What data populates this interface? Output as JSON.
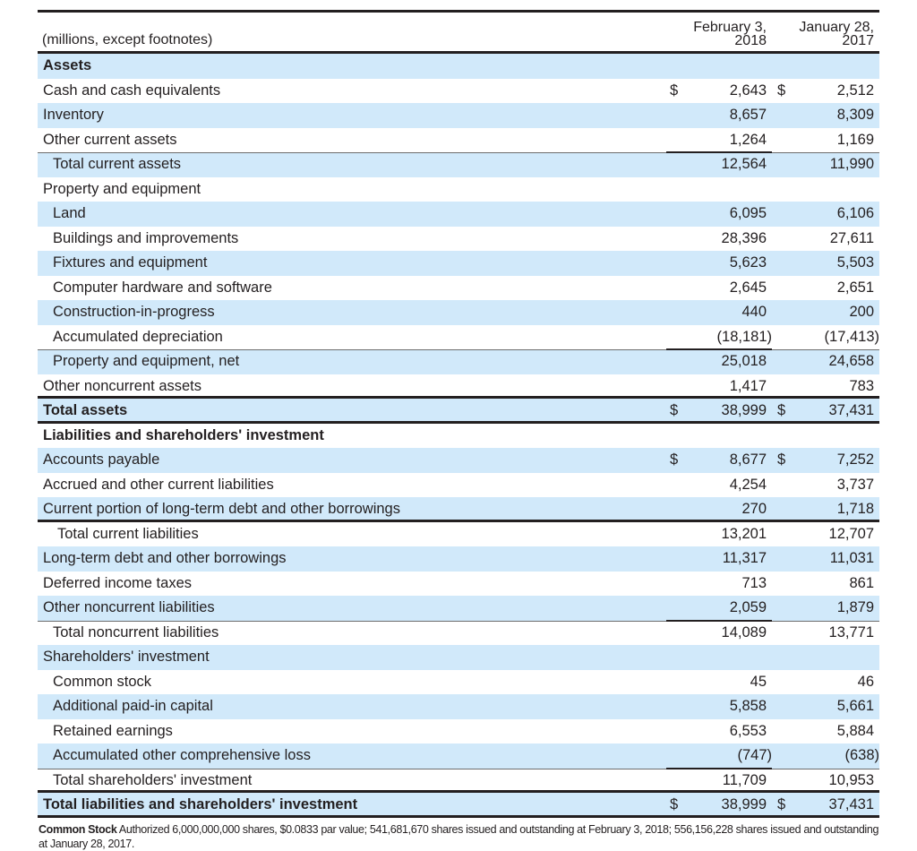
{
  "table": {
    "units_label": "(millions, except footnotes)",
    "columns": [
      {
        "line1": "February 3,",
        "line2": "2018"
      },
      {
        "line1": "January 28,",
        "line2": "2017"
      }
    ],
    "currency_symbol": "$",
    "rows": [
      {
        "label": "Assets",
        "feb": "",
        "jan": "",
        "style": "bold",
        "shaded": true
      },
      {
        "label": "Cash and cash equivalents",
        "feb": "2,643",
        "jan": "2,512",
        "dollar": true,
        "shaded": false
      },
      {
        "label": "Inventory",
        "feb": "8,657",
        "jan": "8,309",
        "shaded": true
      },
      {
        "label": "Other current assets",
        "feb": "1,264",
        "jan": "1,169",
        "shaded": false
      },
      {
        "label": "Total current assets",
        "feb": "12,564",
        "jan": "11,990",
        "indent": 1,
        "shaded": true
      },
      {
        "label": "Property and equipment",
        "feb": "",
        "jan": "",
        "shaded": false
      },
      {
        "label": "Land",
        "feb": "6,095",
        "jan": "6,106",
        "indent": 1,
        "shaded": true
      },
      {
        "label": "Buildings and improvements",
        "feb": "28,396",
        "jan": "27,611",
        "indent": 1,
        "shaded": false
      },
      {
        "label": "Fixtures and equipment",
        "feb": "5,623",
        "jan": "5,503",
        "indent": 1,
        "shaded": true
      },
      {
        "label": "Computer hardware and software",
        "feb": "2,645",
        "jan": "2,651",
        "indent": 1,
        "shaded": false
      },
      {
        "label": "Construction-in-progress",
        "feb": "440",
        "jan": "200",
        "indent": 1,
        "shaded": true
      },
      {
        "label": "Accumulated depreciation",
        "feb": "(18,181)",
        "jan": "(17,413)",
        "indent": 1,
        "shaded": false
      },
      {
        "label": "Property and equipment, net",
        "feb": "25,018",
        "jan": "24,658",
        "indent": 1,
        "shaded": true
      },
      {
        "label": "Other noncurrent assets",
        "feb": "1,417",
        "jan": "783",
        "shaded": false
      },
      {
        "label": "Total assets",
        "feb": "38,999",
        "jan": "37,431",
        "style": "bold",
        "dollar": true,
        "shaded": true
      },
      {
        "label": "Liabilities and shareholders' investment",
        "feb": "",
        "jan": "",
        "style": "bold",
        "shaded": false
      },
      {
        "label": "Accounts payable",
        "feb": "8,677",
        "jan": "7,252",
        "dollar": true,
        "shaded": true
      },
      {
        "label": "Accrued and other current liabilities",
        "feb": "4,254",
        "jan": "3,737",
        "shaded": false
      },
      {
        "label": "Current portion of long-term debt and other borrowings",
        "feb": "270",
        "jan": "1,718",
        "shaded": true
      },
      {
        "label": "Total current liabilities",
        "feb": "13,201",
        "jan": "12,707",
        "indent": 2,
        "shaded": false
      },
      {
        "label": "Long-term debt and other borrowings",
        "feb": "11,317",
        "jan": "11,031",
        "shaded": true
      },
      {
        "label": "Deferred income taxes",
        "feb": "713",
        "jan": "861",
        "shaded": false
      },
      {
        "label": "Other noncurrent liabilities",
        "feb": "2,059",
        "jan": "1,879",
        "shaded": true
      },
      {
        "label": "Total noncurrent liabilities",
        "feb": "14,089",
        "jan": "13,771",
        "indent": 1,
        "shaded": false
      },
      {
        "label": "Shareholders' investment",
        "feb": "",
        "jan": "",
        "shaded": true
      },
      {
        "label": "Common stock",
        "feb": "45",
        "jan": "46",
        "indent": 1,
        "shaded": false
      },
      {
        "label": "Additional paid-in capital",
        "feb": "5,858",
        "jan": "5,661",
        "indent": 1,
        "shaded": true
      },
      {
        "label": "Retained earnings",
        "feb": "6,553",
        "jan": "5,884",
        "indent": 1,
        "shaded": false
      },
      {
        "label": "Accumulated other comprehensive loss",
        "feb": "(747)",
        "jan": "(638)",
        "indent": 1,
        "shaded": true
      },
      {
        "label": "Total shareholders' investment",
        "feb": "11,709",
        "jan": "10,953",
        "indent": 1,
        "shaded": false
      },
      {
        "label": "Total liabilities and shareholders' investment",
        "feb": "38,999",
        "jan": "37,431",
        "style": "bold",
        "dollar": true,
        "shaded": true
      }
    ]
  },
  "footnote": {
    "lead": "Common Stock",
    "text": " Authorized 6,000,000,000 shares, $0.0833 par value; 541,681,670 shares issued and outstanding at February 3, 2018; 556,156,228 shares issued and outstanding at January 28, 2017."
  },
  "colors": {
    "row_shade": "#d1e9fa",
    "rule": "#231f20",
    "text": "#231f20"
  }
}
